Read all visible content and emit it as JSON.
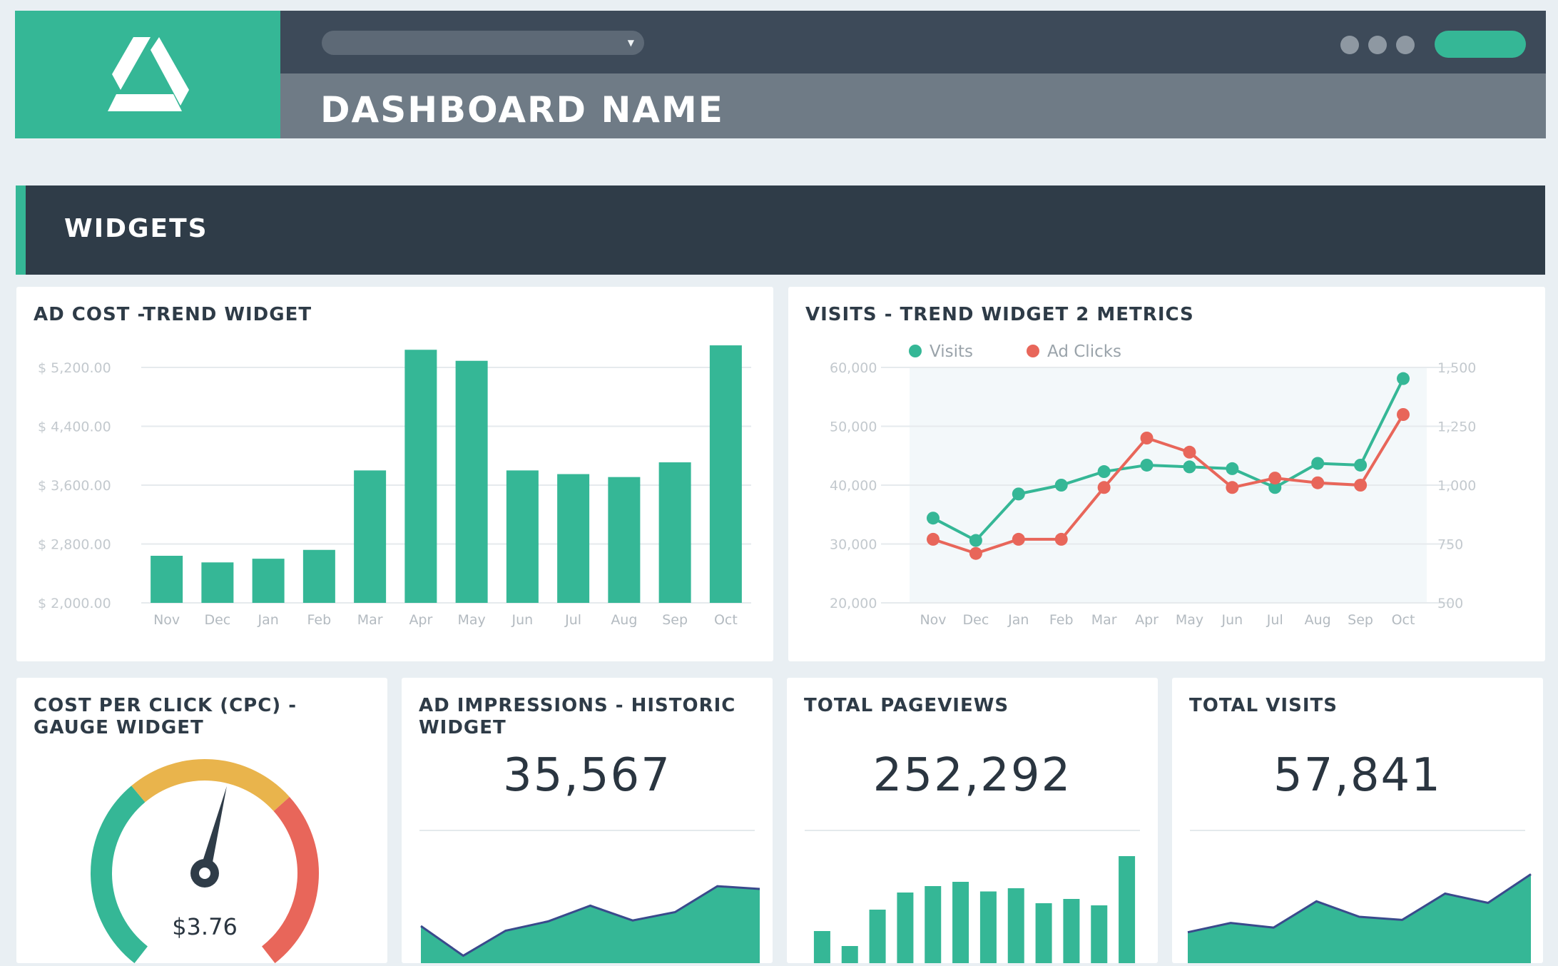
{
  "header": {
    "title": "DASHBOARD NAME",
    "logo_icon": "triangle-logo-icon",
    "brand_color": "#35b796"
  },
  "section": {
    "title": "WIDGETS"
  },
  "widgets": {
    "ad_cost": {
      "title": "AD COST -TREND WIDGET",
      "chart_data": {
        "type": "bar",
        "categories": [
          "Nov",
          "Dec",
          "Jan",
          "Feb",
          "Mar",
          "Apr",
          "May",
          "Jun",
          "Jul",
          "Aug",
          "Sep",
          "Oct"
        ],
        "values": [
          2640,
          2550,
          2600,
          2720,
          3800,
          5440,
          5290,
          3800,
          3750,
          3710,
          3910,
          5500
        ],
        "ylim": [
          2000,
          5200
        ],
        "yticks": [
          2000,
          2800,
          3600,
          4400,
          5200
        ],
        "ytick_labels": [
          "$ 2,000.00",
          "$ 2,800.00",
          "$ 3,600.00",
          "$ 4,400.00",
          "$ 5,200.00"
        ],
        "color": "#35b796",
        "grid": true
      }
    },
    "visits": {
      "title": "VISITS - TREND WIDGET 2 METRICS",
      "chart_data": {
        "type": "line",
        "categories": [
          "Nov",
          "Dec",
          "Jan",
          "Feb",
          "Mar",
          "Apr",
          "May",
          "Jun",
          "Jul",
          "Aug",
          "Sep",
          "Oct"
        ],
        "series": [
          {
            "name": "Visits",
            "axis": "left",
            "color": "#35b796",
            "values": [
              34400,
              30600,
              38500,
              40000,
              42300,
              43400,
              43100,
              42800,
              39600,
              43700,
              43400,
              58100
            ]
          },
          {
            "name": "Ad Clicks",
            "axis": "right",
            "color": "#e8665a",
            "values": [
              770,
              710,
              770,
              770,
              990,
              1200,
              1140,
              990,
              1030,
              1010,
              1000,
              1300
            ]
          }
        ],
        "ylim_left": [
          20000,
          60000
        ],
        "ylim_right": [
          500,
          1500
        ],
        "yticks_left": [
          "20,000",
          "30,000",
          "40,000",
          "50,000",
          "60,000"
        ],
        "yticks_right": [
          "500",
          "750",
          "1,000",
          "1,250",
          "1,500"
        ],
        "legend": "top-left",
        "grid": true
      }
    },
    "cpc": {
      "title": "COST PER CLICK (CPC) - GAUGE WIDGET",
      "value_label": "$3.76",
      "level": 0.55,
      "colors": [
        "#35b796",
        "#e9b44c",
        "#e8665a"
      ]
    },
    "impressions": {
      "title": "AD IMPRESSIONS - HISTORIC WIDGET",
      "value": "35,567",
      "chart_data": {
        "type": "area",
        "values": [
          40,
          8,
          35,
          45,
          62,
          46,
          55,
          83,
          80
        ],
        "ylim": [
          0,
          100
        ],
        "color": "#35b796"
      }
    },
    "pageviews": {
      "title": "TOTAL PAGEVIEWS",
      "value": "252,292",
      "chart_data": {
        "type": "bar",
        "values": [
          30,
          16,
          50,
          66,
          72,
          76,
          67,
          70,
          56,
          60,
          54,
          100
        ],
        "ylim": [
          0,
          100
        ],
        "color": "#35b796"
      }
    },
    "visits_total": {
      "title": "TOTAL VISITS",
      "value": "57,841",
      "chart_data": {
        "type": "area",
        "values": [
          40,
          52,
          46,
          80,
          60,
          56,
          90,
          78,
          115
        ],
        "ylim": [
          0,
          120
        ],
        "color": "#35b796"
      }
    }
  }
}
